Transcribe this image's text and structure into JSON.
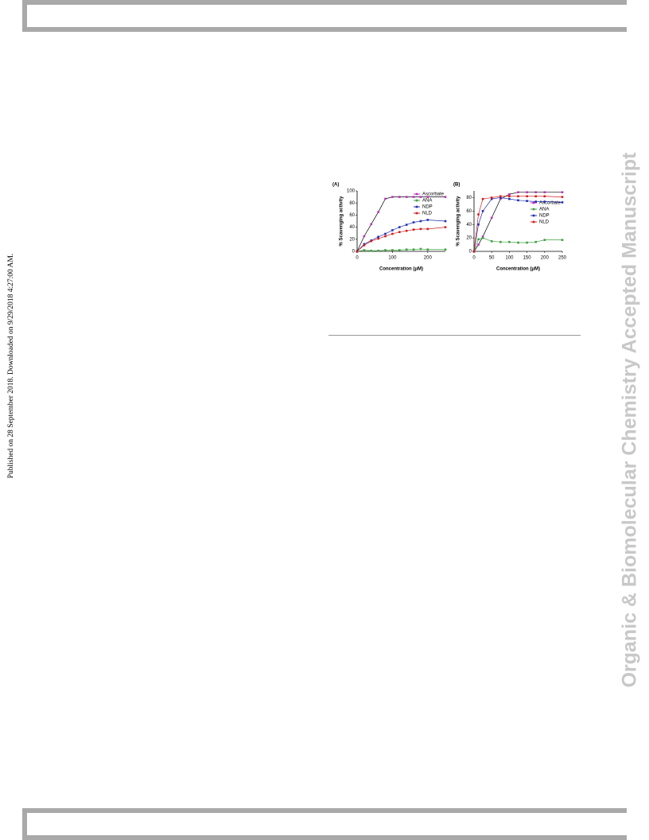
{
  "sidebar": "Published on 28 September 2018. Downloaded on 9/29/2018 4:27:00 AM.",
  "watermark": "Organic & Biomolecular Chemistry Accepted Manuscript",
  "chart_data": [
    {
      "type": "line",
      "panel": "(A)",
      "ylabel": "% Scavenging activity",
      "xlabel": "Concentration (μM)",
      "xlim": [
        0,
        250
      ],
      "xticks": [
        0,
        100,
        200
      ],
      "ylim": [
        0,
        100
      ],
      "yticks": [
        0,
        20,
        40,
        60,
        80,
        100
      ],
      "legend": "upper right",
      "x": [
        0,
        20,
        40,
        60,
        80,
        100,
        120,
        140,
        160,
        180,
        200,
        250
      ],
      "series": [
        {
          "name": "Ascorbate",
          "color": "#c030c0",
          "values": [
            0,
            25,
            45,
            65,
            87,
            90,
            90,
            90,
            90,
            90,
            90,
            90
          ]
        },
        {
          "name": "ANA",
          "color": "#40a040",
          "values": [
            0,
            2,
            1,
            1,
            2,
            2,
            2,
            3,
            3,
            4,
            3,
            3
          ]
        },
        {
          "name": "NDP",
          "color": "#2030b0",
          "values": [
            0,
            12,
            18,
            24,
            29,
            35,
            40,
            44,
            48,
            50,
            52,
            50
          ]
        },
        {
          "name": "NLD",
          "color": "#d02020",
          "values": [
            0,
            10,
            17,
            21,
            25,
            29,
            32,
            34,
            36,
            37,
            37,
            40
          ]
        }
      ]
    },
    {
      "type": "line",
      "panel": "(B)",
      "ylabel": "% Scavenging activity",
      "xlabel": "Concentration (μM)",
      "xlim": [
        0,
        250
      ],
      "xticks": [
        0,
        50,
        100,
        150,
        200,
        250
      ],
      "ylim": [
        0,
        90
      ],
      "yticks": [
        0,
        20,
        40,
        60,
        80
      ],
      "legend": "center right",
      "x": [
        0,
        12.5,
        25,
        50,
        75,
        100,
        125,
        150,
        175,
        200,
        250
      ],
      "series": [
        {
          "name": "Ascorbate",
          "color": "#c030c0",
          "values": [
            0,
            10,
            22,
            50,
            78,
            85,
            88,
            88,
            88,
            88,
            88
          ]
        },
        {
          "name": "ANA",
          "color": "#40a040",
          "values": [
            0,
            18,
            20,
            15,
            14,
            14,
            13,
            13,
            14,
            17,
            17
          ]
        },
        {
          "name": "NDP",
          "color": "#2030b0",
          "values": [
            0,
            40,
            60,
            78,
            80,
            78,
            76,
            75,
            74,
            74,
            73
          ]
        },
        {
          "name": "NLD",
          "color": "#d02020",
          "values": [
            0,
            55,
            78,
            80,
            82,
            82,
            82,
            82,
            82,
            82,
            81
          ]
        }
      ]
    }
  ]
}
